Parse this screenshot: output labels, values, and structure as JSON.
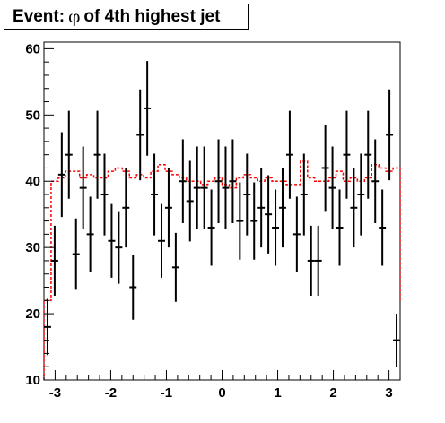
{
  "title": {
    "prefix": "Event:",
    "symbol": "φ",
    "suffix": "of 4th highest jet"
  },
  "chart_data": {
    "type": "histogram",
    "title": "Event: φ of 4th highest jet",
    "xlabel": "",
    "ylabel": "",
    "xlim": [
      -3.2,
      3.2
    ],
    "ylim": [
      10,
      61
    ],
    "x_ticks": [
      -3,
      -2,
      -1,
      0,
      1,
      2,
      3
    ],
    "x_tick_labels": [
      "-3",
      "-2",
      "-1",
      "0",
      "1",
      "2",
      "3"
    ],
    "y_ticks": [
      10,
      20,
      30,
      40,
      50,
      60
    ],
    "y_tick_labels": [
      "10",
      "20",
      "30",
      "40",
      "50",
      "60"
    ],
    "grid": false,
    "legend": "none",
    "series": [
      {
        "style": "points-with-error-bars",
        "color": "#000000",
        "bin_width": 0.128,
        "bin_centers": [
          -3.136,
          -3.008,
          -2.88,
          -2.752,
          -2.624,
          -2.496,
          -2.368,
          -2.24,
          -2.112,
          -1.984,
          -1.856,
          -1.728,
          -1.6,
          -1.472,
          -1.344,
          -1.216,
          -1.088,
          -0.96,
          -0.832,
          -0.704,
          -0.576,
          -0.448,
          -0.32,
          -0.192,
          -0.064,
          0.064,
          0.192,
          0.32,
          0.448,
          0.576,
          0.704,
          0.832,
          0.96,
          1.088,
          1.216,
          1.344,
          1.472,
          1.6,
          1.728,
          1.856,
          1.984,
          2.112,
          2.24,
          2.368,
          2.496,
          2.624,
          2.752,
          2.88,
          3.008,
          3.136
        ],
        "values": [
          18,
          28,
          41,
          44,
          29,
          39,
          32,
          44,
          38,
          31,
          30,
          36,
          24,
          47,
          51,
          38,
          31,
          36,
          27,
          40,
          37,
          39,
          39,
          33,
          40,
          39,
          40,
          34,
          38,
          34,
          36,
          35,
          33,
          36,
          44,
          32,
          38,
          28,
          28,
          42,
          39,
          33,
          44,
          36,
          38,
          44,
          40,
          33,
          47,
          16
        ]
      },
      {
        "style": "dashed-step",
        "color": "#ff0000",
        "bin_width": 0.128,
        "values": [
          22,
          40,
          40.5,
          41.5,
          41.5,
          40.5,
          41,
          40.5,
          40.5,
          41.5,
          42,
          41.5,
          40.5,
          41,
          40.5,
          41.5,
          42.5,
          41.5,
          41,
          40.5,
          40,
          40,
          39.5,
          40,
          40.5,
          39.5,
          39,
          40.5,
          41,
          40.5,
          40,
          40.5,
          40,
          40,
          39.5,
          39.5,
          43,
          40.5,
          40,
          40,
          40.5,
          41.5,
          40,
          40.5,
          40,
          40.5,
          42.5,
          42,
          41.5,
          42,
          22
        ]
      }
    ]
  }
}
